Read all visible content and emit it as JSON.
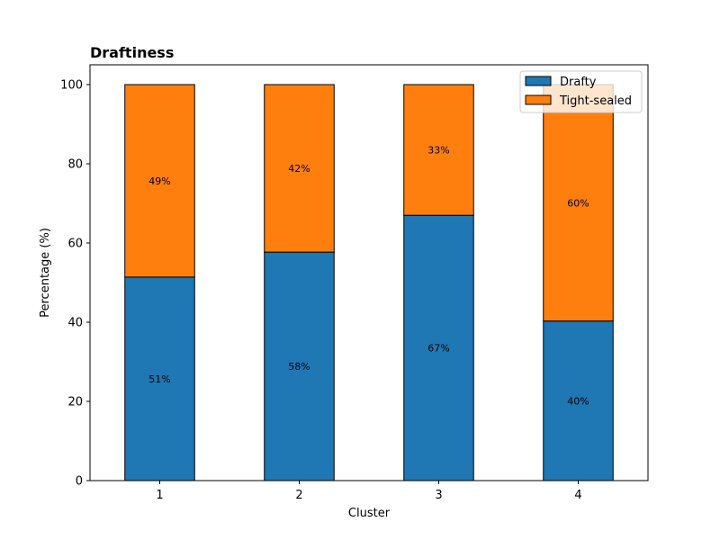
{
  "chart_data": {
    "type": "bar",
    "stacked": true,
    "title": "Draftiness",
    "xlabel": "Cluster",
    "ylabel": "Percentage (%)",
    "categories": [
      "1",
      "2",
      "3",
      "4"
    ],
    "ylim": [
      0,
      105
    ],
    "yticks": [
      0,
      20,
      40,
      60,
      80,
      100
    ],
    "series": [
      {
        "name": "Drafty",
        "values": [
          51.4,
          57.7,
          67.0,
          40.3
        ],
        "labels": [
          "51%",
          "58%",
          "67%",
          "40%"
        ]
      },
      {
        "name": "Tight-sealed",
        "values": [
          48.6,
          42.3,
          33.0,
          59.7
        ],
        "labels": [
          "49%",
          "42%",
          "33%",
          "60%"
        ]
      }
    ],
    "grid": false,
    "legend_position": "top-right"
  },
  "colors": {
    "series": [
      "#1f77b4",
      "#ff7f0e"
    ],
    "edge": "#000000"
  }
}
